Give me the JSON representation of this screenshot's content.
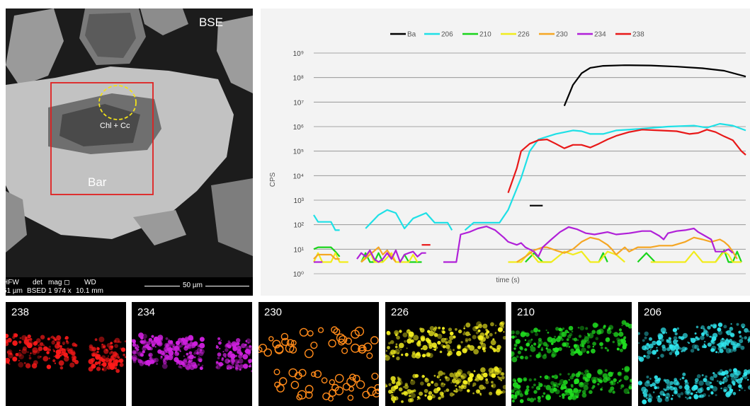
{
  "bse_panel": {
    "mode_label": "BSE",
    "mineral_label": "Bar",
    "inclusion_label": "Chl + Cc",
    "sem_info": {
      "hfw": {
        "header": "HFW",
        "value": "51 µm"
      },
      "det": {
        "header": "det",
        "value": "BSED"
      },
      "mag": {
        "header": "mag ◻",
        "value": "1 974 x"
      },
      "wd": {
        "header": "WD",
        "value": "10.1 mm"
      },
      "scale_bar": "50 µm"
    },
    "colors": {
      "laser_box": "#e02020",
      "inclusion_circle": "#f2e21a"
    }
  },
  "chart_data": {
    "type": "line",
    "xlabel": "time (s)",
    "ylabel": "CPS",
    "yscale": "log",
    "ylim": [
      1,
      1000000000
    ],
    "y_tick_labels": [
      "10⁰",
      "10¹",
      "10²",
      "10³",
      "10⁴",
      "10⁵",
      "10⁶",
      "10⁷",
      "10⁸",
      "10⁹"
    ],
    "x_range": [
      0,
      100
    ],
    "grid": "horizontal",
    "legend_position": "top",
    "series": [
      {
        "name": "Ba",
        "color": "#000000",
        "segments": [
          [
            [
              50,
              600
            ],
            [
              53,
              600
            ]
          ],
          [
            [
              58,
              7000000
            ],
            [
              60,
              50000000
            ],
            [
              62,
              150000000
            ],
            [
              64,
              250000000
            ],
            [
              67,
              300000000
            ],
            [
              72,
              320000000
            ],
            [
              78,
              310000000
            ],
            [
              84,
              280000000
            ],
            [
              90,
              240000000
            ],
            [
              95,
              190000000
            ],
            [
              100,
              110000000
            ]
          ]
        ]
      },
      {
        "name": "206",
        "color": "#1ee0e6",
        "segments": [
          [
            [
              0,
              250
            ],
            [
              1,
              130
            ],
            [
              4,
              130
            ],
            [
              5,
              60
            ],
            [
              6,
              60
            ]
          ],
          [
            [
              12,
              70
            ],
            [
              15,
              250
            ],
            [
              17,
              400
            ],
            [
              19,
              300
            ],
            [
              21,
              70
            ],
            [
              23,
              180
            ],
            [
              26,
              300
            ],
            [
              28,
              120
            ],
            [
              31,
              120
            ],
            [
              32,
              60
            ]
          ],
          [
            [
              35,
              60
            ],
            [
              37,
              120
            ],
            [
              43,
              120
            ],
            [
              45,
              400
            ],
            [
              48,
              8000
            ],
            [
              50,
              100000
            ],
            [
              52,
              300000
            ],
            [
              56,
              500000
            ],
            [
              60,
              700000
            ],
            [
              62,
              650000
            ],
            [
              64,
              500000
            ],
            [
              67,
              500000
            ],
            [
              70,
              700000
            ],
            [
              75,
              800000
            ],
            [
              82,
              1000000
            ],
            [
              88,
              1100000
            ],
            [
              91,
              900000
            ],
            [
              94,
              1300000
            ],
            [
              97,
              1100000
            ],
            [
              100,
              700000
            ]
          ]
        ]
      },
      {
        "name": "210",
        "color": "#18d41a",
        "segments": [
          [
            [
              0,
              10
            ],
            [
              1,
              12
            ],
            [
              4,
              12
            ],
            [
              5,
              8
            ],
            [
              6,
              5
            ]
          ],
          [
            [
              11,
              3
            ],
            [
              12,
              7
            ],
            [
              13,
              3
            ],
            [
              14,
              3
            ],
            [
              15,
              7
            ],
            [
              16,
              3
            ]
          ],
          [
            [
              20,
              3
            ],
            [
              21,
              6
            ],
            [
              22,
              3
            ],
            [
              25,
              3
            ]
          ],
          [
            [
              49,
              3
            ],
            [
              51,
              7
            ],
            [
              53,
              3
            ],
            [
              55,
              3
            ]
          ],
          [
            [
              66,
              3
            ],
            [
              67,
              7
            ],
            [
              68,
              3
            ]
          ],
          [
            [
              75,
              3
            ],
            [
              77,
              7
            ],
            [
              79,
              3
            ]
          ],
          [
            [
              93,
              3
            ],
            [
              95,
              9
            ],
            [
              96,
              3
            ],
            [
              97,
              3
            ],
            [
              98,
              8
            ],
            [
              99,
              3
            ]
          ]
        ]
      },
      {
        "name": "226",
        "color": "#f1ec1c",
        "segments": [
          [
            [
              0,
              3
            ],
            [
              1,
              7
            ],
            [
              2,
              3
            ],
            [
              4,
              3
            ],
            [
              5,
              7
            ],
            [
              6,
              3
            ],
            [
              8,
              3
            ]
          ],
          [
            [
              11,
              3
            ],
            [
              13,
              8
            ],
            [
              14,
              3
            ],
            [
              16,
              3
            ],
            [
              18,
              7
            ],
            [
              19,
              3
            ],
            [
              22,
              3
            ],
            [
              23,
              6
            ],
            [
              24,
              3
            ]
          ],
          [
            [
              45,
              3
            ],
            [
              48,
              3
            ],
            [
              50,
              8
            ],
            [
              52,
              3
            ],
            [
              55,
              3
            ],
            [
              58,
              8
            ],
            [
              60,
              6
            ],
            [
              62,
              8
            ],
            [
              64,
              3
            ],
            [
              66,
              3
            ],
            [
              68,
              8
            ],
            [
              70,
              6
            ],
            [
              72,
              3
            ]
          ],
          [
            [
              78,
              3
            ],
            [
              86,
              3
            ],
            [
              88,
              8
            ],
            [
              90,
              3
            ],
            [
              93,
              3
            ],
            [
              95,
              8
            ],
            [
              96,
              6
            ],
            [
              97,
              3
            ],
            [
              99,
              3
            ]
          ]
        ]
      },
      {
        "name": "230",
        "color": "#f5a623",
        "segments": [
          [
            [
              0,
              4
            ],
            [
              1,
              6
            ],
            [
              4,
              6
            ],
            [
              5,
              4
            ],
            [
              6,
              4
            ]
          ],
          [
            [
              11,
              3
            ],
            [
              13,
              6
            ],
            [
              15,
              12
            ],
            [
              16,
              6
            ],
            [
              17,
              9
            ],
            [
              18,
              5
            ],
            [
              19,
              3
            ]
          ],
          [
            [
              47,
              3
            ],
            [
              49,
              5
            ],
            [
              51,
              9
            ],
            [
              53,
              12
            ],
            [
              54,
              12
            ],
            [
              56,
              9
            ],
            [
              58,
              7
            ],
            [
              60,
              10
            ],
            [
              62,
              20
            ],
            [
              64,
              30
            ],
            [
              66,
              25
            ],
            [
              68,
              15
            ],
            [
              69,
              10
            ],
            [
              70,
              6
            ],
            [
              72,
              12
            ],
            [
              73,
              8
            ],
            [
              75,
              12
            ],
            [
              78,
              12
            ],
            [
              80,
              14
            ],
            [
              83,
              14
            ],
            [
              86,
              20
            ],
            [
              88,
              30
            ],
            [
              90,
              25
            ],
            [
              92,
              20
            ],
            [
              94,
              25
            ],
            [
              95,
              20
            ],
            [
              96,
              14
            ],
            [
              97,
              8
            ],
            [
              98,
              4
            ]
          ]
        ]
      },
      {
        "name": "234",
        "color": "#b020d8",
        "segments": [
          [
            [
              0,
              3
            ],
            [
              2,
              3
            ]
          ],
          [
            [
              10,
              4
            ],
            [
              11,
              7
            ],
            [
              12,
              5
            ],
            [
              13,
              9
            ],
            [
              14,
              4
            ],
            [
              15,
              3
            ],
            [
              16,
              4
            ],
            [
              17,
              7
            ],
            [
              18,
              4
            ],
            [
              19,
              9
            ],
            [
              20,
              3
            ],
            [
              21,
              6
            ],
            [
              22,
              7
            ],
            [
              23,
              8
            ],
            [
              24,
              5
            ],
            [
              25,
              7
            ],
            [
              26,
              7
            ]
          ],
          [
            [
              30,
              3
            ],
            [
              33,
              3
            ],
            [
              34,
              40
            ],
            [
              36,
              50
            ],
            [
              38,
              70
            ],
            [
              40,
              85
            ],
            [
              42,
              60
            ],
            [
              44,
              30
            ],
            [
              45,
              20
            ],
            [
              47,
              15
            ],
            [
              48,
              18
            ],
            [
              49,
              12
            ],
            [
              51,
              8
            ],
            [
              52,
              5
            ],
            [
              53,
              12
            ],
            [
              55,
              25
            ],
            [
              57,
              50
            ],
            [
              59,
              80
            ],
            [
              61,
              65
            ],
            [
              63,
              45
            ],
            [
              65,
              40
            ],
            [
              68,
              50
            ],
            [
              70,
              40
            ],
            [
              73,
              45
            ],
            [
              76,
              55
            ],
            [
              78,
              55
            ],
            [
              80,
              35
            ],
            [
              81,
              25
            ],
            [
              82,
              45
            ],
            [
              84,
              55
            ],
            [
              86,
              60
            ],
            [
              88,
              70
            ],
            [
              89,
              50
            ],
            [
              90,
              40
            ],
            [
              92,
              25
            ],
            [
              93,
              8
            ],
            [
              94,
              8
            ],
            [
              95,
              8
            ],
            [
              96,
              10
            ],
            [
              97,
              7
            ]
          ]
        ]
      },
      {
        "name": "238",
        "color": "#e81818",
        "segments": [
          [
            [
              25,
              15
            ],
            [
              27,
              15
            ]
          ],
          [
            [
              45,
              2000
            ],
            [
              47,
              20000
            ],
            [
              48,
              100000
            ],
            [
              50,
              200000
            ],
            [
              52,
              280000
            ],
            [
              54,
              300000
            ],
            [
              56,
              200000
            ],
            [
              58,
              130000
            ],
            [
              60,
              180000
            ],
            [
              62,
              180000
            ],
            [
              64,
              140000
            ],
            [
              66,
              200000
            ],
            [
              68,
              300000
            ],
            [
              70,
              420000
            ],
            [
              73,
              600000
            ],
            [
              76,
              750000
            ],
            [
              80,
              700000
            ],
            [
              84,
              650000
            ],
            [
              87,
              500000
            ],
            [
              89,
              550000
            ],
            [
              91,
              750000
            ],
            [
              93,
              600000
            ],
            [
              95,
              400000
            ],
            [
              97,
              280000
            ],
            [
              99,
              100000
            ],
            [
              100,
              70000
            ]
          ]
        ]
      }
    ]
  },
  "maps": [
    {
      "label": "238",
      "color": "#ff1a1a"
    },
    {
      "label": "234",
      "color": "#d020e0"
    },
    {
      "label": "230",
      "color": "#ff8a1a"
    },
    {
      "label": "226",
      "color": "#f5f020"
    },
    {
      "label": "210",
      "color": "#20e020"
    },
    {
      "label": "206",
      "color": "#30e8f0"
    }
  ]
}
